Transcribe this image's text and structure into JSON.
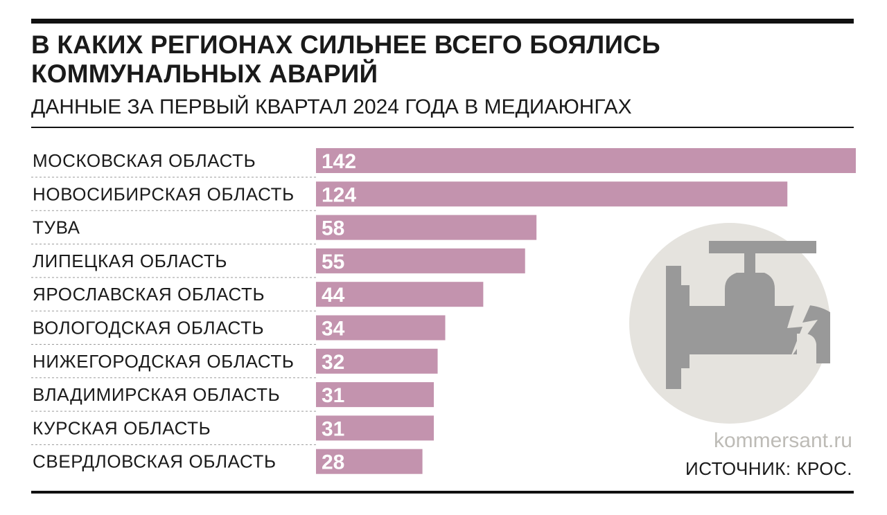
{
  "title": "В КАКИХ РЕГИОНАХ СИЛЬНЕЕ ВСЕГО БОЯЛИСЬ КОММУНАЛЬНЫХ АВАРИЙ",
  "subtitle": "ДАННЫЕ ЗА ПЕРВЫЙ КВАРТАЛ 2024 ГОДА В МЕДИАЮНГАХ",
  "site": "kommersant.ru",
  "source": "ИСТОЧНИК: КРОС.",
  "icon": "broken-water-tap-icon",
  "colors": {
    "bar": "#c393ae",
    "icon_circle": "#e5e3de",
    "icon_tap": "#999999",
    "rule": "#111111"
  },
  "chart_data": {
    "type": "bar",
    "orientation": "horizontal",
    "title": "В КАКИХ РЕГИОНАХ СИЛЬНЕЕ ВСЕГО БОЯЛИСЬ КОММУНАЛЬНЫХ АВАРИЙ",
    "subtitle": "ДАННЫЕ ЗА ПЕРВЫЙ КВАРТАЛ 2024 ГОДА В МЕДИАЮНГАХ",
    "categories": [
      "МОСКОВСКАЯ ОБЛАСТЬ",
      "НОВОСИБИРСКАЯ ОБЛАСТЬ",
      "ТУВА",
      "ЛИПЕЦКАЯ ОБЛАСТЬ",
      "ЯРОСЛАВСКАЯ ОБЛАСТЬ",
      "ВОЛОГОДСКАЯ ОБЛАСТЬ",
      "НИЖЕГОРОДСКАЯ ОБЛАСТЬ",
      "ВЛАДИМИРСКАЯ ОБЛАСТЬ",
      "КУРСКАЯ ОБЛАСТЬ",
      "СВЕРДЛОВСКАЯ ОБЛАСТЬ"
    ],
    "values": [
      142,
      124,
      58,
      55,
      44,
      34,
      32,
      31,
      31,
      28
    ],
    "xlim": [
      0,
      142
    ],
    "xlabel": "",
    "ylabel": "",
    "grid": false,
    "data_labels": true
  }
}
